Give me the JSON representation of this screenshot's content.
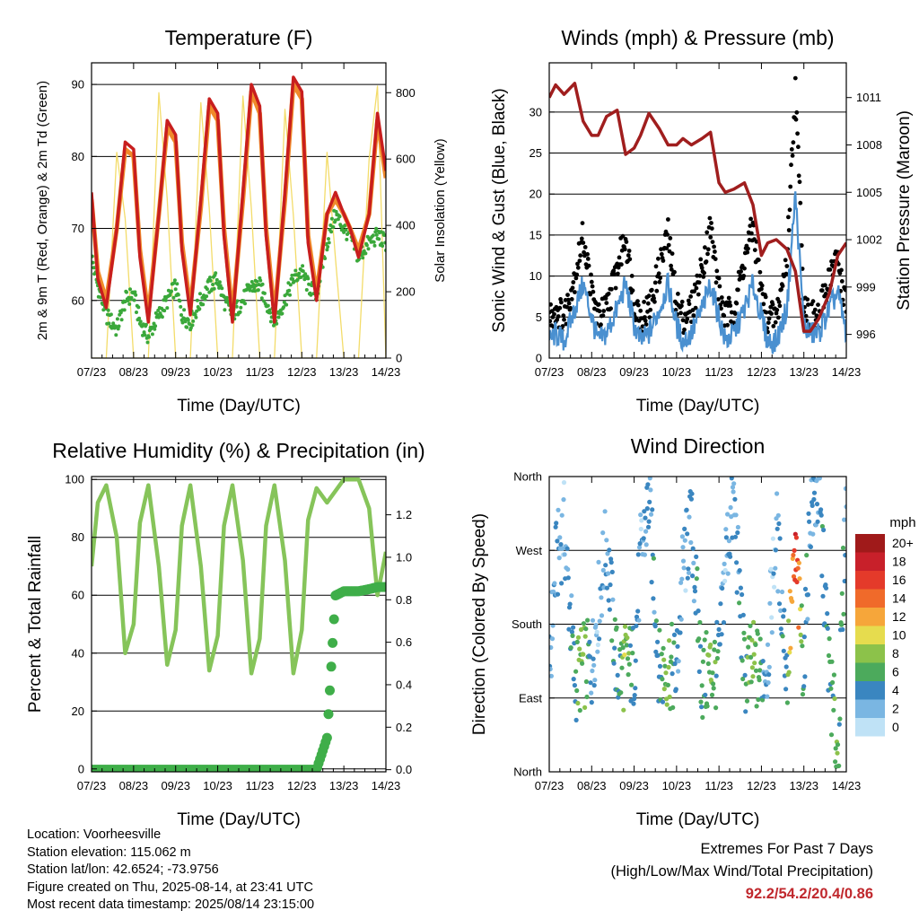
{
  "colors": {
    "temp_2m": "#c81e1e",
    "temp_9m": "#f08a2a",
    "dewpoint": "#3aa83a",
    "insolation": "#f3dc6a",
    "wind": "#4a90d0",
    "gust": "#000000",
    "pressure": "#a01e1e",
    "rh": "#86c45a",
    "precip": "#3fae49"
  },
  "speed_scale": {
    "unit": "mph",
    "labels": [
      "20+",
      "18",
      "16",
      "14",
      "12",
      "10",
      "8",
      "6",
      "4",
      "2",
      "0"
    ],
    "colors": [
      "#a01a1a",
      "#c8202a",
      "#e43a2a",
      "#f06a2a",
      "#f6a63a",
      "#e6dc4e",
      "#8cc24a",
      "#4caa5c",
      "#3a86c0",
      "#7ab6e2",
      "#bfe2f6"
    ]
  },
  "chart_data": [
    {
      "type": "line",
      "title": "Temperature (F)",
      "xlabel": "Time (Day/UTC)",
      "ylabel": "2m & 9m T (Red, Orange) & 2m Td (Green)",
      "y2label": "Solar Insolation (Yellow)",
      "x_ticks": [
        "07/23",
        "08/23",
        "09/23",
        "10/23",
        "11/23",
        "12/23",
        "13/23",
        "14/23"
      ],
      "ylim": [
        52,
        93
      ],
      "y_ticks": [
        60,
        70,
        80,
        90
      ],
      "y2lim": [
        0,
        890
      ],
      "y2_ticks": [
        0,
        200,
        400,
        600,
        800
      ],
      "x": [
        7.0,
        7.15,
        7.35,
        7.6,
        7.8,
        8.0,
        8.15,
        8.35,
        8.6,
        8.8,
        9.0,
        9.15,
        9.35,
        9.6,
        9.8,
        10.0,
        10.15,
        10.35,
        10.6,
        10.8,
        11.0,
        11.15,
        11.35,
        11.6,
        11.8,
        12.0,
        12.15,
        12.35,
        12.6,
        12.8,
        13.0,
        13.15,
        13.35,
        13.6,
        13.8,
        14.0
      ],
      "series": [
        {
          "name": "2m T",
          "values": [
            75,
            63,
            59,
            70,
            82,
            81,
            66,
            57,
            72,
            85,
            83,
            67,
            58,
            74,
            88,
            86,
            69,
            57,
            75,
            90,
            87,
            69,
            57,
            75,
            91,
            89,
            68,
            60,
            72,
            75,
            72,
            70,
            66,
            72,
            86,
            78
          ]
        },
        {
          "name": "9m T",
          "values": [
            74,
            64,
            60,
            70,
            81,
            80,
            67,
            58,
            72,
            84,
            82,
            68,
            59,
            73,
            87,
            85,
            70,
            58,
            74,
            89,
            86,
            70,
            58,
            74,
            90,
            88,
            69,
            61,
            72,
            74,
            72,
            70,
            67,
            72,
            85,
            77
          ]
        },
        {
          "name": "2m Td",
          "values": [
            66,
            62,
            58,
            56,
            60,
            61,
            57,
            55,
            58,
            60,
            62,
            58,
            57,
            60,
            62,
            63,
            60,
            58,
            60,
            62,
            62,
            60,
            57,
            60,
            63,
            64,
            62,
            61,
            68,
            72,
            70,
            69,
            66,
            68,
            69,
            68
          ]
        },
        {
          "name": "Solar Insolation",
          "axis": "y2",
          "values": [
            0,
            0,
            0,
            620,
            420,
            0,
            0,
            0,
            800,
            480,
            0,
            0,
            0,
            770,
            450,
            0,
            0,
            0,
            790,
            450,
            0,
            0,
            0,
            750,
            430,
            0,
            0,
            0,
            620,
            300,
            0,
            0,
            0,
            600,
            820,
            0
          ]
        }
      ]
    },
    {
      "type": "scatter",
      "title": "Winds (mph) & Pressure (mb)",
      "xlabel": "Time (Day/UTC)",
      "ylabel": "Sonic Wind & Gust (Blue, Black)",
      "y2label": "Station Pressure (Maroon)",
      "x_ticks": [
        "07/23",
        "08/23",
        "09/23",
        "10/23",
        "11/23",
        "12/23",
        "13/23",
        "14/23"
      ],
      "ylim": [
        0,
        36
      ],
      "y_ticks": [
        0,
        5,
        10,
        15,
        20,
        25,
        30
      ],
      "y2lim": [
        994.5,
        1013.2
      ],
      "y2_ticks": [
        996,
        999,
        1002,
        1005,
        1008,
        1011
      ],
      "x": [
        7.0,
        7.15,
        7.35,
        7.6,
        7.8,
        8.0,
        8.15,
        8.35,
        8.6,
        8.8,
        9.0,
        9.15,
        9.35,
        9.6,
        9.8,
        10.0,
        10.15,
        10.35,
        10.6,
        10.8,
        11.0,
        11.15,
        11.35,
        11.6,
        11.8,
        12.0,
        12.15,
        12.35,
        12.6,
        12.8,
        13.0,
        13.15,
        13.35,
        13.6,
        13.8,
        14.0
      ],
      "series": [
        {
          "name": "Sonic Wind",
          "values": [
            2,
            3,
            2,
            6,
            9,
            5,
            2,
            3,
            6,
            9,
            4,
            2,
            3,
            6,
            9,
            4,
            2,
            3,
            6,
            9,
            5,
            2,
            3,
            6,
            9,
            5,
            2,
            2,
            6,
            20,
            4,
            3,
            3,
            6,
            8,
            3
          ]
        },
        {
          "name": "Gust",
          "values": [
            5,
            6,
            5,
            10,
            15,
            8,
            5,
            6,
            11,
            15,
            7,
            5,
            6,
            11,
            15,
            7,
            5,
            6,
            11,
            16,
            8,
            5,
            6,
            12,
            16,
            8,
            5,
            5,
            12,
            33,
            7,
            5,
            5,
            10,
            12,
            6
          ]
        },
        {
          "name": "Station Pressure",
          "axis": "y2",
          "values": [
            1011.0,
            1011.8,
            1011.2,
            1011.9,
            1009.5,
            1008.6,
            1008.6,
            1009.8,
            1010.2,
            1007.4,
            1007.8,
            1008.6,
            1010.0,
            1009.0,
            1008.0,
            1008.0,
            1008.4,
            1008.0,
            1008.4,
            1008.8,
            1005.6,
            1005.0,
            1005.2,
            1005.6,
            1004.2,
            1001.0,
            1001.8,
            1002.0,
            1001.4,
            1000.0,
            996.2,
            996.2,
            997.0,
            998.6,
            1001.0,
            1001.8
          ]
        }
      ]
    },
    {
      "type": "line",
      "title": "Relative Humidity (%) & Precipitation (in)",
      "xlabel": "Time (Day/UTC)",
      "ylabel": "Percent & Total Rainfall",
      "x_ticks": [
        "07/23",
        "08/23",
        "09/23",
        "10/23",
        "11/23",
        "12/23",
        "13/23",
        "14/23"
      ],
      "ylim": [
        -1,
        101
      ],
      "y_ticks": [
        0,
        20,
        40,
        60,
        80,
        100
      ],
      "y2lim": [
        -0.01,
        1.38
      ],
      "y2_ticks": [
        "0.0",
        "0.2",
        "0.4",
        "0.6",
        "0.8",
        "1.0",
        "1.2"
      ],
      "x": [
        7.0,
        7.15,
        7.35,
        7.6,
        7.8,
        8.0,
        8.15,
        8.35,
        8.6,
        8.8,
        9.0,
        9.15,
        9.35,
        9.6,
        9.8,
        10.0,
        10.15,
        10.35,
        10.6,
        10.8,
        11.0,
        11.15,
        11.35,
        11.6,
        11.8,
        12.0,
        12.15,
        12.35,
        12.6,
        12.8,
        13.0,
        13.15,
        13.35,
        13.6,
        13.8,
        14.0
      ],
      "series": [
        {
          "name": "Relative Humidity",
          "values": [
            70,
            92,
            98,
            80,
            40,
            50,
            85,
            98,
            70,
            36,
            48,
            84,
            98,
            70,
            34,
            46,
            84,
            98,
            72,
            33,
            45,
            84,
            98,
            72,
            33,
            48,
            86,
            97,
            92,
            96,
            100,
            100,
            100,
            90,
            60,
            75
          ]
        },
        {
          "name": "Total Precipitation",
          "axis": "y2",
          "values": [
            0,
            0,
            0,
            0,
            0,
            0,
            0,
            0,
            0,
            0,
            0,
            0,
            0,
            0,
            0,
            0,
            0,
            0,
            0,
            0,
            0,
            0,
            0,
            0,
            0,
            0,
            0,
            0,
            0.15,
            0.82,
            0.84,
            0.84,
            0.84,
            0.85,
            0.86,
            0.86
          ]
        }
      ]
    },
    {
      "type": "scatter",
      "title": "Wind Direction",
      "xlabel": "Time (Day/UTC)",
      "ylabel": "Direction (Colored By Speed)",
      "x_ticks": [
        "07/23",
        "08/23",
        "09/23",
        "10/23",
        "11/23",
        "12/23",
        "13/23",
        "14/23"
      ],
      "ylim": [
        0,
        360
      ],
      "y_tick_labels": [
        "North",
        "East",
        "South",
        "West",
        "North"
      ],
      "x": [
        7.0,
        7.15,
        7.35,
        7.6,
        7.8,
        8.0,
        8.15,
        8.35,
        8.6,
        8.8,
        9.0,
        9.15,
        9.35,
        9.6,
        9.8,
        10.0,
        10.15,
        10.35,
        10.6,
        10.8,
        11.0,
        11.15,
        11.35,
        11.6,
        11.8,
        12.0,
        12.15,
        12.35,
        12.6,
        12.8,
        13.0,
        13.15,
        13.35,
        13.6,
        13.8,
        14.0
      ],
      "series": [
        {
          "name": "Wind Direction",
          "values": [
            120,
            250,
            300,
            110,
            130,
            130,
            200,
            280,
            120,
            130,
            130,
            260,
            330,
            120,
            130,
            120,
            250,
            300,
            110,
            125,
            130,
            260,
            330,
            120,
            130,
            120,
            140,
            300,
            120,
            260,
            130,
            320,
            340,
            120,
            20,
            340
          ]
        },
        {
          "name": "Wind Speed",
          "values": [
            2,
            3,
            2,
            5,
            8,
            4,
            2,
            3,
            5,
            8,
            4,
            2,
            3,
            5,
            8,
            4,
            2,
            3,
            5,
            8,
            5,
            2,
            3,
            5,
            8,
            5,
            2,
            2,
            5,
            18,
            4,
            3,
            3,
            5,
            7,
            3
          ]
        }
      ]
    }
  ],
  "station": {
    "location": "Location: Voorheesville",
    "elevation": "Station elevation: 115.062 m",
    "latlon": "Station lat/lon: 42.6524; -73.9756",
    "created": "Figure created on Thu, 2025-08-14, at 23:41 UTC",
    "recent": "Most recent data timestamp: 2025/08/14 23:15:00"
  },
  "extremes": {
    "title": "Extremes For Past 7 Days",
    "subtitle": "(High/Low/Max Wind/Total Precipitation)",
    "values": "92.2/54.2/20.4/0.86"
  }
}
